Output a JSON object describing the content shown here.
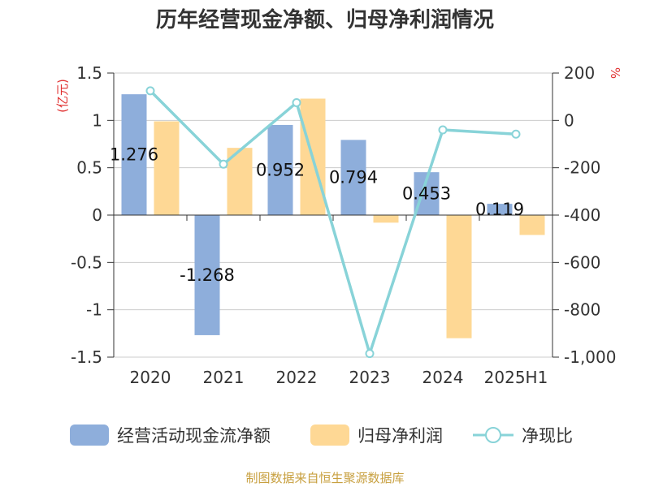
{
  "chart_data": {
    "type": "bar",
    "title": "历年经营现金净额、归母净利润情况",
    "categories": [
      "2020",
      "2021",
      "2022",
      "2023",
      "2024",
      "2025H1"
    ],
    "left_axis": {
      "unit": "(亿元)",
      "ylim": [
        -1.5,
        1.5
      ],
      "ticks": [
        1.5,
        1,
        0.5,
        0,
        -0.5,
        -1,
        -1.5
      ],
      "tick_labels": [
        "1.5",
        "1",
        "0.5",
        "0",
        "-0.5",
        "-1",
        "-1.5"
      ]
    },
    "right_axis": {
      "unit": "%",
      "ylim": [
        -1000,
        200
      ],
      "ticks": [
        200,
        0,
        -200,
        -400,
        -600,
        -800,
        -1000
      ],
      "tick_labels": [
        "200",
        "0",
        "-200",
        "-400",
        "-600",
        "-800",
        "-1,000"
      ]
    },
    "series": [
      {
        "name": "经营活动现金流净额",
        "type": "bar",
        "axis": "left",
        "color": "#8eaedb",
        "values": [
          1.276,
          -1.268,
          0.952,
          0.794,
          0.453,
          0.119
        ],
        "labels": [
          "1.276",
          "-1.268",
          "0.952",
          "0.794",
          "0.453",
          "0.119"
        ]
      },
      {
        "name": "归母净利润",
        "type": "bar",
        "axis": "left",
        "color": "#fed895",
        "values": [
          0.99,
          0.71,
          1.23,
          -0.08,
          -1.3,
          -0.21
        ]
      },
      {
        "name": "净现比",
        "type": "line",
        "axis": "right",
        "color": "#88d3d8",
        "values": [
          125,
          -185,
          75,
          -985,
          -40,
          -58
        ]
      }
    ],
    "grid": true,
    "legend_position": "bottom"
  },
  "source": "制图数据来自恒生聚源数据库",
  "colors": {
    "grid": "#cccccc",
    "axis": "#333333",
    "unit": "#e03030",
    "source": "#c8a040"
  }
}
